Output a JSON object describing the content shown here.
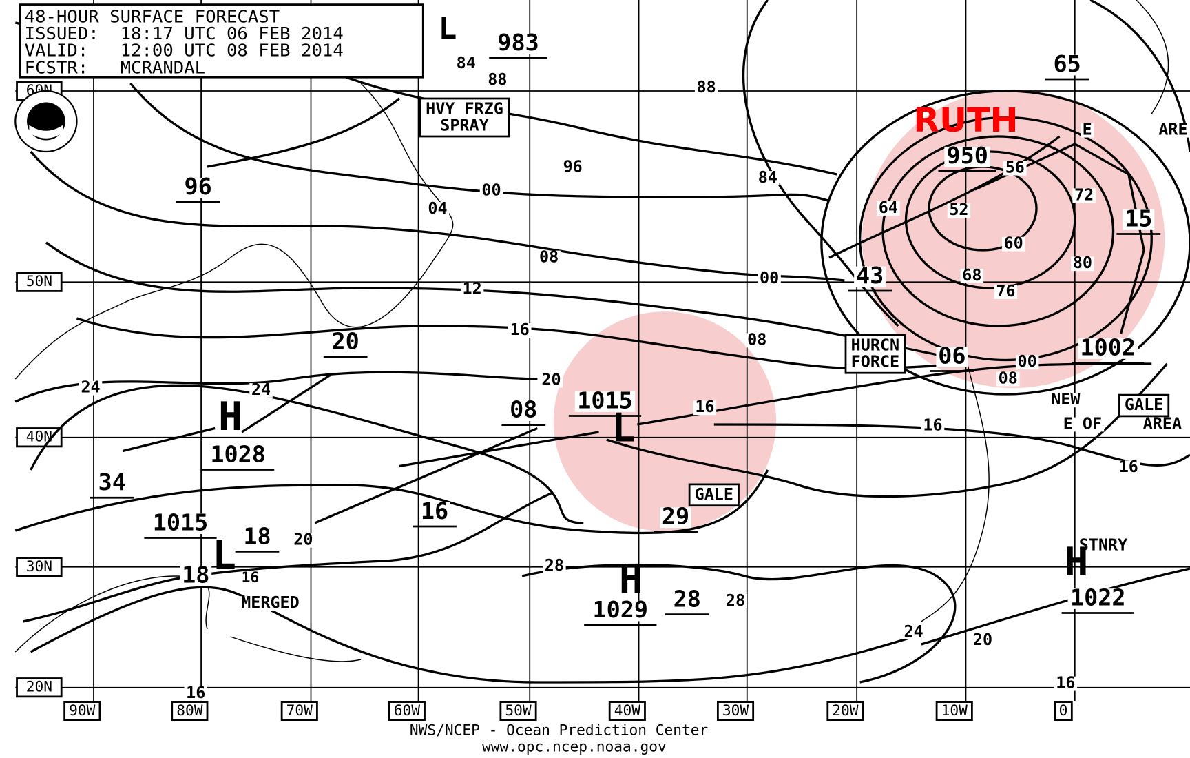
{
  "header": {
    "lines": [
      "48-HOUR SURFACE FORECAST",
      "ISSUED:  18:17 UTC 06 FEB 2014",
      "VALID:   12:00 UTC 08 FEB 2014",
      "FCSTR:   MCRANDAL"
    ]
  },
  "storm_name": "RUTH",
  "labels": [
    "L",
    "983",
    "84",
    "88",
    "88",
    "96",
    "00",
    "04",
    "08",
    "12",
    "16",
    "20",
    "96",
    "65",
    "E",
    "ARE",
    "950",
    "56",
    "72",
    "64",
    "52",
    "15",
    "60",
    "80",
    "68",
    "76",
    "43",
    "84",
    "00",
    "08",
    "06",
    "00",
    "08",
    "1002",
    "NEW",
    "E OF",
    "AREA",
    "20",
    "24",
    "24",
    "H",
    "1028",
    "34",
    "08",
    "1015",
    "16",
    "16",
    "16",
    "29",
    "16",
    "1015",
    "18",
    "20",
    "16",
    "18",
    "MERGED",
    "28",
    "H",
    "1029",
    "28",
    "28",
    "STNRY",
    "H",
    "1022",
    "24",
    "20",
    "16",
    "16",
    "L",
    "L"
  ],
  "boxes": [
    "HVY FRZG SPRAY",
    "HURCN FORCE",
    "GALE",
    "GALE"
  ],
  "lat_labels": [
    "60N",
    "50N",
    "40N",
    "30N",
    "20N"
  ],
  "lon_labels": [
    "90W",
    "80W",
    "70W",
    "60W",
    "50W",
    "40W",
    "30W",
    "20W",
    "10W",
    "0"
  ],
  "footer": {
    "agency": "NWS/NCEP - Ocean Prediction Center",
    "url": "www.opc.ncep.noaa.gov"
  }
}
